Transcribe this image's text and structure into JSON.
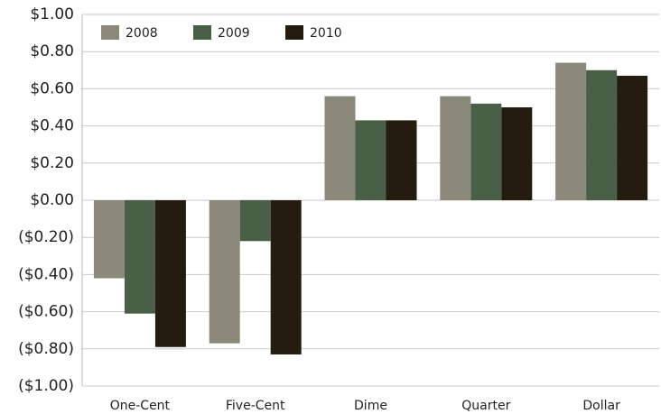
{
  "chart_data": {
    "type": "bar",
    "categories": [
      "One-Cent",
      "Five-Cent",
      "Dime",
      "Quarter",
      "Dollar"
    ],
    "series": [
      {
        "name": "2008",
        "color": "#8b8a7a",
        "values": [
          -0.42,
          -0.77,
          0.56,
          0.56,
          0.74
        ]
      },
      {
        "name": "2009",
        "color": "#4a6046",
        "values": [
          -0.61,
          -0.22,
          0.43,
          0.52,
          0.7
        ]
      },
      {
        "name": "2010",
        "color": "#251c10",
        "values": [
          -0.79,
          -0.83,
          0.43,
          0.5,
          0.67
        ]
      }
    ],
    "ylim": [
      -1,
      1
    ],
    "yticks": [
      {
        "value": -1,
        "label": "($1.00)"
      },
      {
        "value": -0.8,
        "label": "($0.80)"
      },
      {
        "value": -0.6,
        "label": "($0.60)"
      },
      {
        "value": -0.4,
        "label": "($0.40)"
      },
      {
        "value": -0.2,
        "label": "($0.20)"
      },
      {
        "value": 0,
        "label": "$0.00"
      },
      {
        "value": 0.2,
        "label": "$0.20"
      },
      {
        "value": 0.4,
        "label": "$0.40"
      },
      {
        "value": 0.6,
        "label": "$0.60"
      },
      {
        "value": 0.8,
        "label": "$0.80"
      },
      {
        "value": 1,
        "label": "$1.00"
      }
    ],
    "grid": true,
    "legend": "top-left"
  }
}
